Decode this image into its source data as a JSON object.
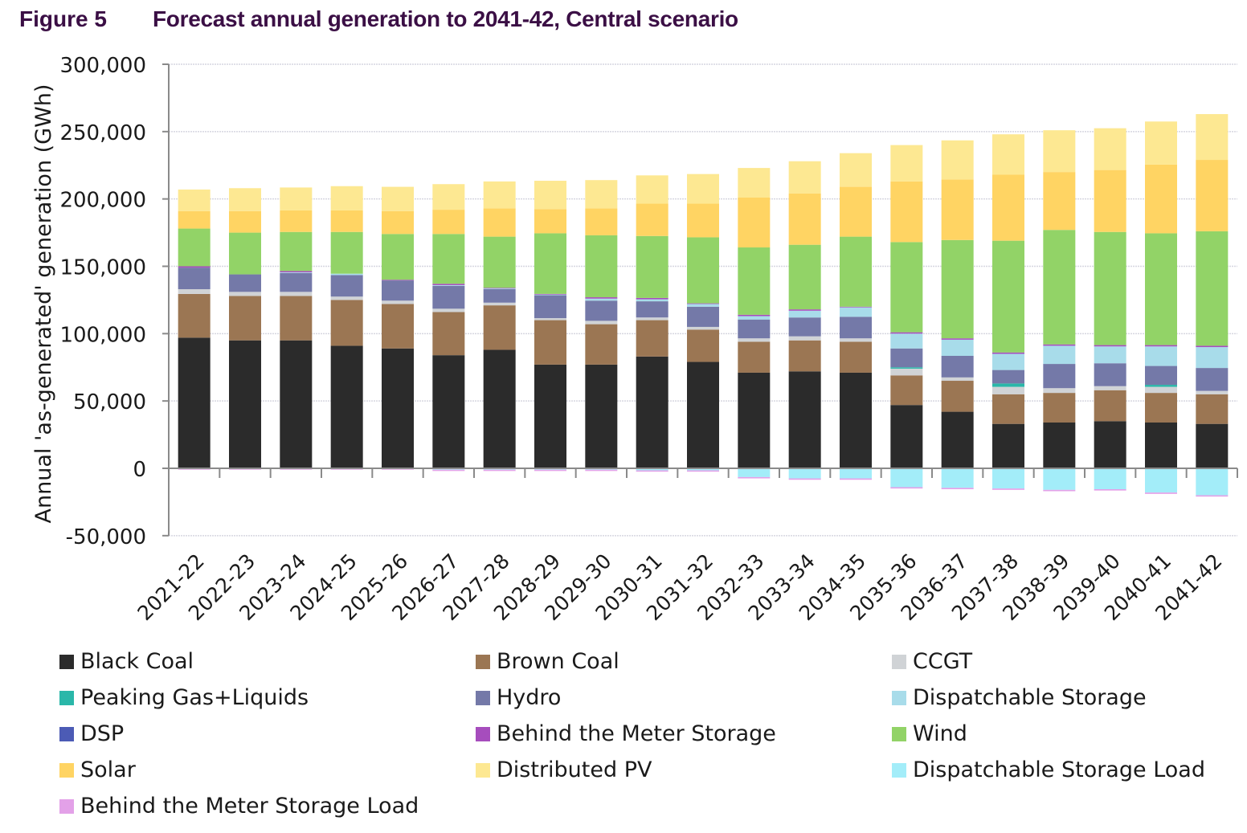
{
  "figure": {
    "label": "Figure 5",
    "title": "Forecast annual generation to 2041-42, Central scenario"
  },
  "chart_data": {
    "type": "bar",
    "stacked": true,
    "title": "Forecast annual generation to 2041-42, Central scenario",
    "xlabel": "",
    "ylabel": "Annual 'as-generated' generation (GWh)",
    "ylim": [
      -50000,
      300000
    ],
    "yticks": [
      -50000,
      0,
      50000,
      100000,
      150000,
      200000,
      250000,
      300000
    ],
    "ytick_labels": [
      "-50,000",
      "0",
      "50,000",
      "100,000",
      "150,000",
      "200,000",
      "250,000",
      "300,000"
    ],
    "grid": true,
    "legend_position": "bottom",
    "categories": [
      "2021-22",
      "2022-23",
      "2023-24",
      "2024-25",
      "2025-26",
      "2026-27",
      "2027-28",
      "2028-29",
      "2029-30",
      "2030-31",
      "2031-32",
      "2032-33",
      "2033-34",
      "2034-35",
      "2035-36",
      "2036-37",
      "2037-38",
      "2038-39",
      "2039-40",
      "2040-41",
      "2041-42"
    ],
    "series": [
      {
        "name": "Black Coal",
        "color": "#2b2b2b",
        "values": [
          97000,
          95000,
          95000,
          91000,
          89000,
          84000,
          88000,
          77000,
          77000,
          83000,
          79000,
          71000,
          72000,
          71000,
          47000,
          42000,
          33000,
          34000,
          35000,
          34000,
          33000
        ]
      },
      {
        "name": "Brown Coal",
        "color": "#9b7653",
        "values": [
          32500,
          33000,
          33000,
          34000,
          33000,
          32000,
          33000,
          33000,
          30000,
          27000,
          24000,
          23000,
          23000,
          23000,
          22000,
          23000,
          22000,
          22000,
          23000,
          22000,
          22000
        ]
      },
      {
        "name": "CCGT",
        "color": "#d0d3d6",
        "values": [
          3500,
          3000,
          3000,
          2500,
          2500,
          2500,
          2000,
          1500,
          2500,
          2000,
          2000,
          2500,
          3000,
          2500,
          5000,
          2500,
          5500,
          3500,
          3000,
          4500,
          2500
        ]
      },
      {
        "name": "Peaking Gas+Liquids",
        "color": "#2ab7a9",
        "values": [
          0,
          0,
          0,
          0,
          0,
          0,
          0,
          0,
          0,
          0,
          0,
          0,
          0,
          0,
          1000,
          0,
          2500,
          0,
          0,
          1500,
          0
        ]
      },
      {
        "name": "Hydro",
        "color": "#7479a8",
        "values": [
          16000,
          13000,
          14000,
          16000,
          15000,
          17000,
          10000,
          17000,
          15000,
          12000,
          15000,
          14000,
          14000,
          16000,
          14000,
          16000,
          10000,
          18000,
          17000,
          14000,
          17000
        ]
      },
      {
        "name": "Dispatchable Storage",
        "color": "#a8dcea",
        "values": [
          0,
          0,
          500,
          1000,
          0,
          500,
          500,
          500,
          1500,
          1500,
          2000,
          2500,
          5000,
          7000,
          11000,
          12000,
          12000,
          13500,
          12500,
          14500,
          15500
        ]
      },
      {
        "name": "DSP",
        "color": "#4c5bb5",
        "values": [
          0,
          0,
          0,
          0,
          0,
          0,
          0,
          0,
          0,
          0,
          0,
          0,
          0,
          0,
          0,
          0,
          0,
          0,
          0,
          0,
          0
        ]
      },
      {
        "name": "Behind the Meter Storage",
        "color": "#a64dbd",
        "values": [
          1000,
          0,
          1000,
          0,
          500,
          1000,
          500,
          500,
          1000,
          1000,
          500,
          1000,
          1000,
          500,
          1000,
          1000,
          1000,
          1000,
          1000,
          1000,
          1000
        ]
      },
      {
        "name": "Wind",
        "color": "#92d367",
        "values": [
          28000,
          31000,
          29000,
          31000,
          34000,
          37000,
          38000,
          45000,
          46000,
          46000,
          49000,
          50000,
          48000,
          52000,
          67000,
          73000,
          83000,
          85000,
          84000,
          83000,
          85000
        ]
      },
      {
        "name": "Solar",
        "color": "#ffd463",
        "values": [
          13000,
          16000,
          16000,
          16000,
          17000,
          18000,
          21000,
          18000,
          20000,
          24000,
          25000,
          37000,
          38000,
          37000,
          45000,
          45000,
          49000,
          43000,
          46000,
          51000,
          53000
        ]
      },
      {
        "name": "Distributed PV",
        "color": "#fde892",
        "values": [
          16000,
          17000,
          17000,
          18000,
          18000,
          19000,
          20000,
          21000,
          21000,
          21000,
          22000,
          22000,
          24000,
          25000,
          27000,
          29000,
          30000,
          31000,
          31000,
          32000,
          34000
        ]
      },
      {
        "name": "Dispatchable Storage Load",
        "color": "#a3edf9",
        "values": [
          0,
          0,
          0,
          0,
          0,
          -1000,
          -1000,
          -1000,
          -1000,
          -1500,
          -1500,
          -6500,
          -7500,
          -7500,
          -14000,
          -14500,
          -15000,
          -16000,
          -15500,
          -18000,
          -20000
        ]
      },
      {
        "name": "Behind the Meter Storage Load",
        "color": "#e3a1e8",
        "values": [
          -1000,
          -1000,
          -1000,
          -1000,
          -1000,
          -1000,
          -1000,
          -1000,
          -1000,
          -1000,
          -1000,
          -1000,
          -1000,
          -1000,
          -1000,
          -1000,
          -1000,
          -1000,
          -1000,
          -1000,
          -1000
        ]
      }
    ]
  },
  "legend": {
    "items": [
      {
        "label": "Black Coal",
        "color": "#2b2b2b"
      },
      {
        "label": "Brown Coal",
        "color": "#9b7653"
      },
      {
        "label": "CCGT",
        "color": "#d0d3d6"
      },
      {
        "label": "Peaking Gas+Liquids",
        "color": "#2ab7a9"
      },
      {
        "label": "Hydro",
        "color": "#7479a8"
      },
      {
        "label": "Dispatchable Storage",
        "color": "#a8dcea"
      },
      {
        "label": "DSP",
        "color": "#4c5bb5"
      },
      {
        "label": "Behind the Meter Storage",
        "color": "#a64dbd"
      },
      {
        "label": "Wind",
        "color": "#92d367"
      },
      {
        "label": "Solar",
        "color": "#ffd463"
      },
      {
        "label": "Distributed PV",
        "color": "#fde892"
      },
      {
        "label": "Dispatchable Storage Load",
        "color": "#a3edf9"
      },
      {
        "label": "Behind the Meter Storage Load",
        "color": "#e3a1e8"
      }
    ]
  }
}
